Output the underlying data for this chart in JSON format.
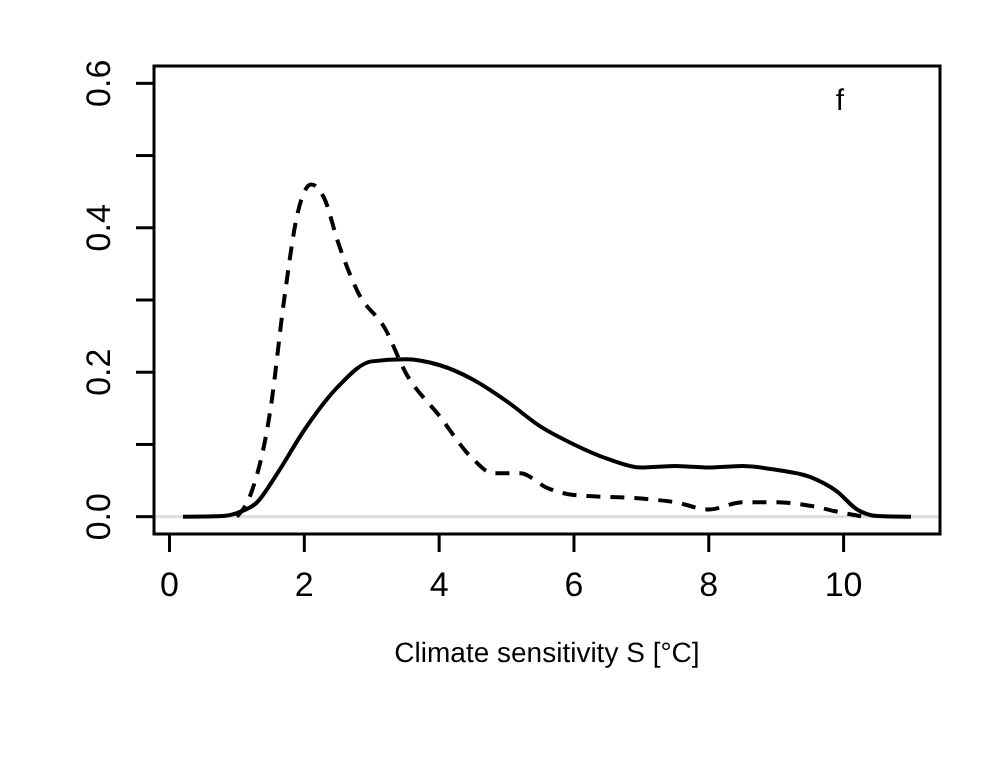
{
  "chart_data": {
    "type": "line",
    "xlabel": "Climate sensitivity S [°C]",
    "annotations": [
      "f"
    ],
    "xlim": [
      -0.23,
      11.43
    ],
    "ylim": [
      -0.024,
      0.624
    ],
    "xticks": [
      0,
      2,
      4,
      6,
      8,
      10
    ],
    "yticks": [
      {
        "value": 0,
        "label": "0.0"
      },
      {
        "value": 0.1,
        "label": null
      },
      0.2,
      {
        "value": 0.3,
        "label": null
      },
      0.4,
      {
        "value": 0.5,
        "label": null
      },
      0.6
    ],
    "grid": false,
    "ref_lines": [
      {
        "axis": "y",
        "value": 0,
        "color": "#dddddd"
      }
    ],
    "series": [
      {
        "color": "#000000",
        "line_style": "solid",
        "x": [
          0.2,
          0.8,
          1.0,
          1.3,
          1.6,
          2.0,
          2.5,
          3.0,
          3.5,
          4.0,
          4.5,
          5.0,
          5.5,
          6.0,
          6.5,
          7.0,
          7.5,
          8.0,
          8.5,
          9.0,
          9.5,
          9.9,
          10.2,
          10.5,
          11.0
        ],
        "values": [
          0,
          0.001,
          0.005,
          0.02,
          0.06,
          0.12,
          0.18,
          0.215,
          0.218,
          0.21,
          0.19,
          0.16,
          0.125,
          0.1,
          0.08,
          0.068,
          0.07,
          0.068,
          0.07,
          0.065,
          0.055,
          0.035,
          0.01,
          0.001,
          0
        ]
      },
      {
        "color": "#000000",
        "line_style": "dashed",
        "x": [
          1.0,
          1.2,
          1.5,
          1.7,
          1.9,
          2.1,
          2.3,
          2.5,
          2.8,
          3.2,
          3.5,
          4.0,
          4.5,
          4.8,
          5.2,
          5.6,
          6.0,
          7.0,
          7.5,
          8.0,
          8.5,
          9.0,
          9.5,
          10.0,
          10.3
        ],
        "values": [
          0,
          0.03,
          0.15,
          0.3,
          0.42,
          0.46,
          0.44,
          0.38,
          0.31,
          0.26,
          0.2,
          0.14,
          0.08,
          0.06,
          0.06,
          0.04,
          0.03,
          0.025,
          0.02,
          0.01,
          0.02,
          0.02,
          0.015,
          0.005,
          0
        ]
      }
    ]
  }
}
